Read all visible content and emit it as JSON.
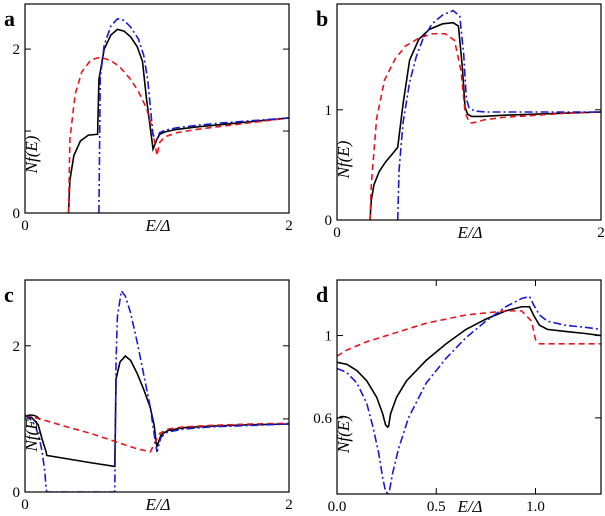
{
  "chart_data": [
    {
      "type": "line",
      "panel": "a",
      "xlabel": "E/Δ",
      "ylabel": "Nf(E)",
      "xlim": [
        0,
        2
      ],
      "ylim": [
        0,
        2.55
      ],
      "xticks": [
        0,
        2
      ],
      "xtick_labels": [
        "0",
        "2"
      ],
      "yticks": [
        0,
        1,
        2
      ],
      "ytick_labels": [
        "0",
        "",
        "2"
      ],
      "series": [
        {
          "style": "solid",
          "color": "#000000",
          "x": [
            0.33,
            0.34,
            0.37,
            0.42,
            0.48,
            0.55,
            0.56,
            0.6,
            0.65,
            0.7,
            0.75,
            0.8,
            0.85,
            0.89,
            0.92,
            0.97,
            1.0,
            1.02,
            1.06,
            1.15,
            1.3,
            1.5,
            1.75,
            2.0
          ],
          "y": [
            0,
            0.4,
            0.7,
            0.88,
            0.95,
            0.96,
            1.63,
            2.0,
            2.17,
            2.24,
            2.22,
            2.15,
            2.03,
            1.85,
            1.4,
            0.78,
            0.9,
            0.96,
            0.99,
            1.02,
            1.05,
            1.08,
            1.12,
            1.16
          ]
        },
        {
          "style": "dashed",
          "color": "#e8141c",
          "x": [
            0.33,
            0.34,
            0.38,
            0.43,
            0.5,
            0.57,
            0.65,
            0.72,
            0.8,
            0.86,
            0.92,
            0.96,
            0.99,
            1.0,
            1.02,
            1.06,
            1.15,
            1.3,
            1.5,
            1.75,
            2.0
          ],
          "y": [
            0,
            0.9,
            1.45,
            1.72,
            1.87,
            1.9,
            1.86,
            1.78,
            1.63,
            1.48,
            1.28,
            1.05,
            0.8,
            0.7,
            0.86,
            0.93,
            0.98,
            1.02,
            1.06,
            1.11,
            1.16
          ]
        },
        {
          "style": "dashdot",
          "color": "#1a1ad0",
          "x": [
            0.56,
            0.57,
            0.6,
            0.65,
            0.7,
            0.75,
            0.8,
            0.86,
            0.9,
            0.93,
            0.97,
            1.0,
            1.02,
            1.06,
            1.15,
            1.3,
            1.5,
            1.75,
            2.0
          ],
          "y": [
            0,
            1.65,
            2.05,
            2.28,
            2.37,
            2.35,
            2.27,
            2.12,
            1.92,
            1.62,
            0.95,
            0.9,
            0.98,
            1.01,
            1.04,
            1.07,
            1.1,
            1.13,
            1.16
          ]
        }
      ]
    },
    {
      "type": "line",
      "panel": "b",
      "xlabel": "E/Δ",
      "ylabel": "Nf(E)",
      "xlim": [
        0,
        2
      ],
      "ylim": [
        0,
        1.96
      ],
      "xticks": [
        0,
        2
      ],
      "xtick_labels": [
        "0",
        "2"
      ],
      "yticks": [
        0,
        1
      ],
      "ytick_labels": [
        "0",
        "1"
      ],
      "series": [
        {
          "style": "solid",
          "color": "#000000",
          "x": [
            0.25,
            0.26,
            0.28,
            0.32,
            0.37,
            0.42,
            0.46,
            0.5,
            0.55,
            0.62,
            0.7,
            0.8,
            0.88,
            0.92,
            0.95,
            0.97,
            0.99,
            1.02,
            1.1,
            1.25,
            1.5,
            1.75,
            2.0
          ],
          "y": [
            0,
            0.18,
            0.32,
            0.44,
            0.53,
            0.6,
            0.66,
            1.05,
            1.45,
            1.64,
            1.73,
            1.78,
            1.79,
            1.76,
            1.38,
            1.02,
            0.96,
            0.94,
            0.94,
            0.95,
            0.96,
            0.97,
            0.98
          ]
        },
        {
          "style": "dashed",
          "color": "#e8141c",
          "x": [
            0.25,
            0.26,
            0.3,
            0.36,
            0.44,
            0.52,
            0.62,
            0.72,
            0.82,
            0.89,
            0.94,
            0.97,
            1.0,
            1.02,
            1.06,
            1.12,
            1.25,
            1.5,
            1.75,
            2.0
          ],
          "y": [
            0,
            0.32,
            0.92,
            1.27,
            1.46,
            1.58,
            1.65,
            1.69,
            1.69,
            1.63,
            1.35,
            0.98,
            0.89,
            0.88,
            0.89,
            0.91,
            0.93,
            0.95,
            0.97,
            0.98
          ]
        },
        {
          "style": "dashdot",
          "color": "#1a1ad0",
          "x": [
            0.46,
            0.47,
            0.5,
            0.55,
            0.6,
            0.65,
            0.72,
            0.8,
            0.88,
            0.93,
            0.96,
            0.98,
            1.0,
            1.04,
            1.12,
            1.25,
            1.5,
            1.75,
            2.0
          ],
          "y": [
            0,
            0.45,
            0.88,
            1.25,
            1.48,
            1.64,
            1.78,
            1.86,
            1.9,
            1.85,
            1.5,
            1.1,
            1.02,
            0.99,
            0.98,
            0.98,
            0.98,
            0.98,
            0.98
          ]
        }
      ]
    },
    {
      "type": "line",
      "panel": "c",
      "xlabel": "E/Δ",
      "ylabel": "Nf(E)",
      "xlim": [
        0,
        2
      ],
      "ylim": [
        0,
        2.9
      ],
      "xticks": [
        0,
        2
      ],
      "xtick_labels": [
        "0",
        "2"
      ],
      "yticks": [
        0,
        1,
        2
      ],
      "ytick_labels": [
        "0",
        "",
        "2"
      ],
      "series": [
        {
          "style": "solid",
          "color": "#000000",
          "x": [
            0.0,
            0.05,
            0.1,
            0.13,
            0.16,
            0.165,
            0.3,
            0.5,
            0.68,
            0.69,
            0.72,
            0.76,
            0.8,
            0.85,
            0.9,
            0.95,
            0.98,
            0.99,
            1.0,
            1.03,
            1.08,
            1.2,
            1.4,
            1.7,
            2.0
          ],
          "y": [
            1.05,
            1.02,
            0.92,
            0.72,
            0.55,
            0.5,
            0.46,
            0.4,
            0.35,
            1.55,
            1.78,
            1.86,
            1.8,
            1.62,
            1.4,
            1.15,
            0.9,
            0.72,
            0.62,
            0.78,
            0.84,
            0.88,
            0.9,
            0.92,
            0.93
          ]
        },
        {
          "style": "dashed",
          "color": "#e8141c",
          "x": [
            0.0,
            0.05,
            0.15,
            0.3,
            0.5,
            0.7,
            0.85,
            0.95,
            0.99,
            1.02,
            1.08,
            1.2,
            1.4,
            1.7,
            2.0
          ],
          "y": [
            1.05,
            1.03,
            0.98,
            0.9,
            0.8,
            0.68,
            0.59,
            0.55,
            0.7,
            0.8,
            0.86,
            0.89,
            0.91,
            0.93,
            0.94
          ]
        },
        {
          "style": "dashdot",
          "color": "#1a1ad0",
          "x": [
            0.0,
            0.04,
            0.08,
            0.11,
            0.13,
            0.15,
            0.16,
            0.165,
            0.5,
            0.68,
            0.69,
            0.7,
            0.73,
            0.76,
            0.8,
            0.85,
            0.9,
            0.95,
            0.99,
            1.0,
            1.03,
            1.08,
            1.2,
            1.4,
            1.7,
            2.0
          ],
          "y": [
            1.05,
            1.0,
            0.9,
            0.72,
            0.55,
            0.28,
            0.05,
            0,
            0,
            0,
            1.8,
            2.4,
            2.75,
            2.68,
            2.45,
            2.05,
            1.6,
            1.15,
            0.65,
            0.55,
            0.75,
            0.82,
            0.86,
            0.89,
            0.91,
            0.93
          ]
        }
      ]
    },
    {
      "type": "line",
      "panel": "d",
      "xlabel": "E/Δ",
      "ylabel": "Nf(E)",
      "xlim": [
        0,
        1.33
      ],
      "ylim": [
        0.23,
        1.27
      ],
      "xticks": [
        0.0,
        0.5,
        1.0
      ],
      "xtick_labels": [
        "0.0",
        "0.5",
        "1.0"
      ],
      "yticks": [
        0.6,
        1.0
      ],
      "ytick_labels": [
        "0.6",
        "1"
      ],
      "series": [
        {
          "style": "solid",
          "color": "#000000",
          "x": [
            0.0,
            0.05,
            0.1,
            0.15,
            0.2,
            0.23,
            0.245,
            0.255,
            0.26,
            0.27,
            0.3,
            0.35,
            0.45,
            0.55,
            0.65,
            0.75,
            0.85,
            0.93,
            0.97,
            0.99,
            1.02,
            1.06,
            1.15,
            1.25,
            1.33
          ],
          "y": [
            0.87,
            0.86,
            0.83,
            0.78,
            0.7,
            0.62,
            0.565,
            0.555,
            0.56,
            0.62,
            0.7,
            0.78,
            0.88,
            0.96,
            1.03,
            1.08,
            1.12,
            1.14,
            1.14,
            1.1,
            1.05,
            1.03,
            1.02,
            1.01,
            1.0
          ]
        },
        {
          "style": "dashed",
          "color": "#e8141c",
          "x": [
            0.0,
            0.05,
            0.15,
            0.25,
            0.35,
            0.45,
            0.55,
            0.65,
            0.75,
            0.85,
            0.93,
            0.98,
            1.0,
            1.02,
            1.06,
            1.15,
            1.25,
            1.33
          ],
          "y": [
            0.9,
            0.93,
            0.97,
            1.0,
            1.03,
            1.06,
            1.08,
            1.1,
            1.11,
            1.12,
            1.12,
            1.07,
            0.98,
            0.96,
            0.96,
            0.96,
            0.96,
            0.96
          ]
        },
        {
          "style": "dashdot",
          "color": "#1a1ad0",
          "x": [
            0.0,
            0.05,
            0.1,
            0.15,
            0.18,
            0.21,
            0.23,
            0.245,
            0.255,
            0.265,
            0.28,
            0.31,
            0.36,
            0.45,
            0.55,
            0.65,
            0.75,
            0.85,
            0.93,
            0.97,
            0.99,
            1.02,
            1.06,
            1.15,
            1.25,
            1.33
          ],
          "y": [
            0.84,
            0.82,
            0.77,
            0.67,
            0.56,
            0.43,
            0.31,
            0.24,
            0.235,
            0.25,
            0.33,
            0.45,
            0.6,
            0.77,
            0.89,
            0.99,
            1.07,
            1.14,
            1.18,
            1.19,
            1.15,
            1.1,
            1.07,
            1.05,
            1.04,
            1.03
          ]
        }
      ]
    }
  ]
}
